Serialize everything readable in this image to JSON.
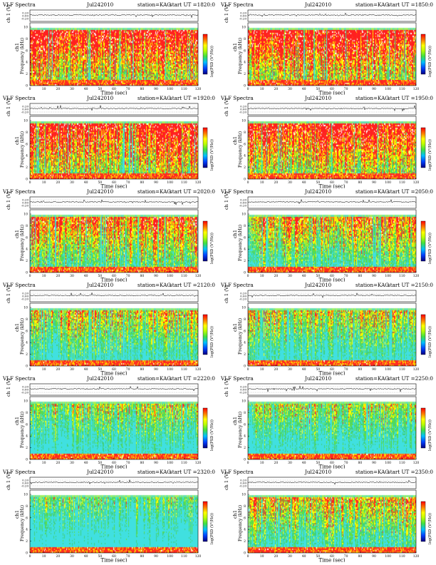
{
  "common": {
    "title_prefix": "VLF Spectra",
    "station": "station=KAG",
    "trace_ylabel": "ch 1 (V)",
    "freq_ylabel": "Frequency (kHz)",
    "ch_label": "ch1",
    "xlabel": "Time (sec)",
    "cbar_label": "log(PSD (V²/Hz))",
    "trace_ticks": [
      "0.20",
      "0.00",
      "-0.20"
    ],
    "freq_ticks": [
      "0",
      "2",
      "4",
      "6",
      "8",
      "10"
    ],
    "time_ticks": [
      "0",
      "10",
      "20",
      "30",
      "40",
      "50",
      "60",
      "70",
      "80",
      "90",
      "100",
      "110",
      "120"
    ]
  },
  "colors": {
    "background": "#ffffff",
    "red": "#ff2020",
    "yellow": "#ffff00",
    "green": "#40e040",
    "cyan": "#40e0e0",
    "axis": "#000000"
  },
  "chart_data": [
    {
      "type": "heatmap",
      "date": "Jul242010",
      "start": "start  UT =1820:0",
      "intensity": 0.92,
      "top_band_khz": 9.5,
      "xlim": [
        0,
        120
      ],
      "ylim": [
        0,
        10
      ]
    },
    {
      "type": "heatmap",
      "date": "Jul242010",
      "start": "start  UT =1850:0",
      "intensity": 0.92,
      "top_band_khz": 9.5,
      "xlim": [
        0,
        120
      ],
      "ylim": [
        0,
        10
      ]
    },
    {
      "type": "heatmap",
      "date": "Jul242010",
      "start": "start  UT =1920:0",
      "intensity": 0.88,
      "top_band_khz": 9.5,
      "xlim": [
        0,
        120
      ],
      "ylim": [
        0,
        10
      ]
    },
    {
      "type": "heatmap",
      "date": "Jul242010",
      "start": "start  UT =1950:0",
      "intensity": 0.86,
      "top_band_khz": 9.5,
      "xlim": [
        0,
        120
      ],
      "ylim": [
        0,
        10
      ]
    },
    {
      "type": "heatmap",
      "date": "Jul242010",
      "start": "start  UT =2020:0",
      "intensity": 0.72,
      "top_band_khz": 9.5,
      "xlim": [
        0,
        120
      ],
      "ylim": [
        0,
        10
      ]
    },
    {
      "type": "heatmap",
      "date": "Jul242010",
      "start": "start  UT =2050:0",
      "intensity": 0.62,
      "top_band_khz": 9.5,
      "xlim": [
        0,
        120
      ],
      "ylim": [
        0,
        10
      ]
    },
    {
      "type": "heatmap",
      "date": "Jul242010",
      "start": "start  UT =2120:0",
      "intensity": 0.52,
      "top_band_khz": 9.5,
      "xlim": [
        0,
        120
      ],
      "ylim": [
        0,
        10
      ]
    },
    {
      "type": "heatmap",
      "date": "Jul242010",
      "start": "start  UT =2150:0",
      "intensity": 0.5,
      "top_band_khz": 9.5,
      "xlim": [
        0,
        120
      ],
      "ylim": [
        0,
        10
      ]
    },
    {
      "type": "heatmap",
      "date": "Jul242010",
      "start": "start  UT =2220:0",
      "intensity": 0.42,
      "top_band_khz": 9.5,
      "xlim": [
        0,
        120
      ],
      "ylim": [
        0,
        10
      ]
    },
    {
      "type": "heatmap",
      "date": "Jul242010",
      "start": "start  UT =2250:0",
      "intensity": 0.44,
      "top_band_khz": 9.5,
      "xlim": [
        0,
        120
      ],
      "ylim": [
        0,
        10
      ]
    },
    {
      "type": "heatmap",
      "date": "Jul242010",
      "start": "start  UT =2320:0",
      "intensity": 0.3,
      "top_band_khz": 9.5,
      "xlim": [
        0,
        120
      ],
      "ylim": [
        0,
        10
      ]
    },
    {
      "type": "heatmap",
      "date": "Jul242010",
      "start": "start  UT =2350:0",
      "intensity": 0.58,
      "top_band_khz": 9.5,
      "xlim": [
        0,
        120
      ],
      "ylim": [
        0,
        10
      ]
    }
  ]
}
